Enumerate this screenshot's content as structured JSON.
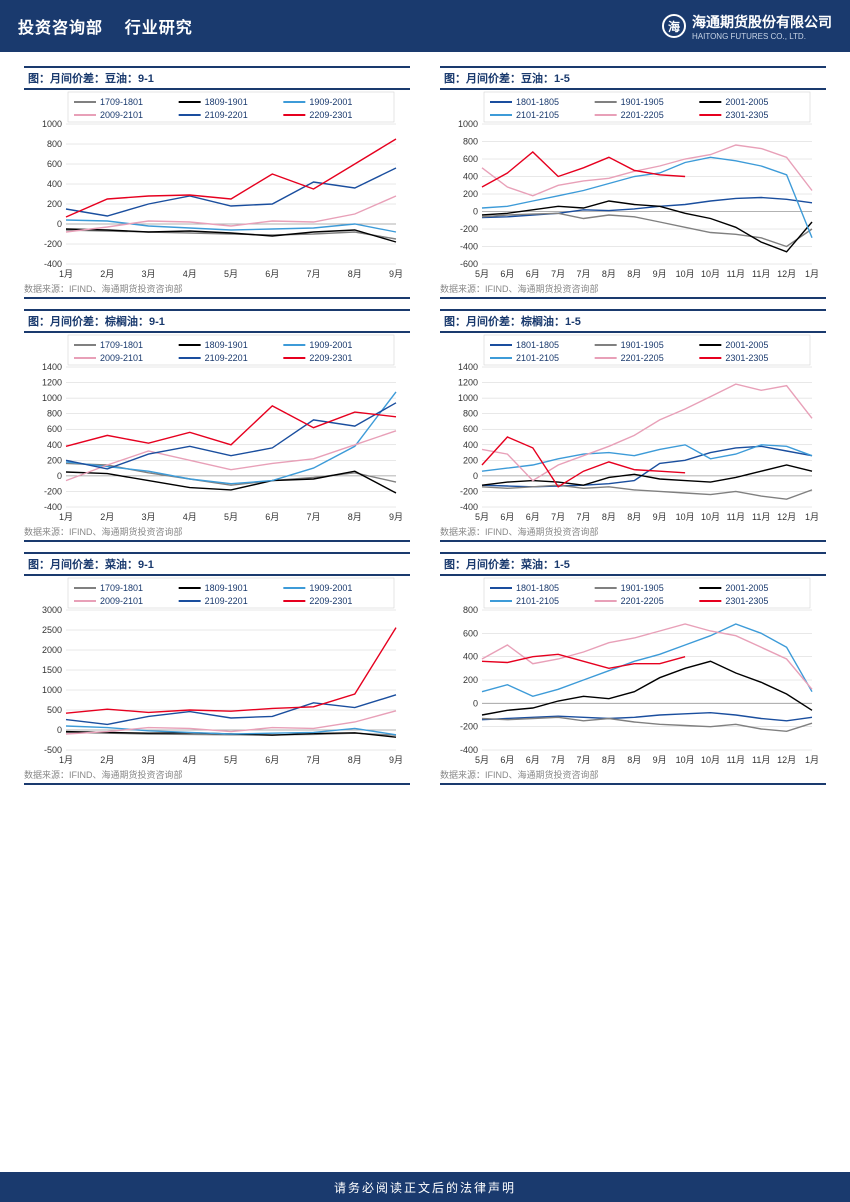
{
  "header": {
    "dept": "投资咨询部",
    "section": "行业研究",
    "company_cn": "海通期货股份有限公司",
    "company_en": "HAITONG FUTURES CO., LTD."
  },
  "footer": "请务必阅读正文后的法律声明",
  "source_label": "数据来源：IFIND、海通期货投资咨询部",
  "chart_style": {
    "background": "#ffffff",
    "grid_color": "#d0d0d0",
    "axis_color": "#333333",
    "title_bar_color": "#1a3a6e",
    "axis_fontsize": 9,
    "legend_fontsize": 9,
    "line_width": 1.4
  },
  "charts": [
    {
      "title": "图：月间价差：豆油：9-1",
      "ylim": [
        -400,
        1000
      ],
      "ytick_step": 200,
      "xlabels": [
        "1月",
        "2月",
        "3月",
        "4月",
        "5月",
        "6月",
        "7月",
        "8月",
        "9月"
      ],
      "series": [
        {
          "name": "1709-1801",
          "color": "#808080",
          "data": [
            -60,
            -70,
            -80,
            -90,
            -100,
            -110,
            -100,
            -80,
            -150
          ]
        },
        {
          "name": "1809-1901",
          "color": "#000000",
          "data": [
            -50,
            -60,
            -80,
            -70,
            -90,
            -120,
            -80,
            -60,
            -180
          ]
        },
        {
          "name": "1909-2001",
          "color": "#3d9bd8",
          "data": [
            40,
            30,
            -20,
            -40,
            -60,
            -50,
            -40,
            0,
            -80
          ]
        },
        {
          "name": "2009-2101",
          "color": "#e8a0b8",
          "data": [
            -80,
            -30,
            30,
            20,
            -20,
            30,
            20,
            100,
            280
          ]
        },
        {
          "name": "2109-2201",
          "color": "#1a4e9e",
          "data": [
            150,
            80,
            200,
            280,
            180,
            200,
            420,
            360,
            560
          ]
        },
        {
          "name": "2209-2301",
          "color": "#e6001f",
          "data": [
            70,
            250,
            280,
            290,
            250,
            500,
            350,
            600,
            850
          ]
        }
      ]
    },
    {
      "title": "图：月间价差：豆油：1-5",
      "ylim": [
        -600,
        1000
      ],
      "ytick_step": 200,
      "xlabels": [
        "5月",
        "6月",
        "6月",
        "7月",
        "7月",
        "8月",
        "8月",
        "9月",
        "10月",
        "10月",
        "11月",
        "11月",
        "12月",
        "1月"
      ],
      "series": [
        {
          "name": "1801-1805",
          "color": "#1a4e9e",
          "data": [
            -70,
            -60,
            -40,
            -20,
            20,
            10,
            30,
            60,
            80,
            120,
            150,
            160,
            140,
            100
          ]
        },
        {
          "name": "1901-1905",
          "color": "#808080",
          "data": [
            -60,
            -40,
            -30,
            -20,
            -80,
            -40,
            -60,
            -120,
            -180,
            -240,
            -260,
            -300,
            -400,
            -200
          ]
        },
        {
          "name": "2001-2005",
          "color": "#000000",
          "data": [
            -40,
            -20,
            20,
            60,
            40,
            120,
            80,
            60,
            -20,
            -80,
            -180,
            -350,
            -460,
            -120
          ]
        },
        {
          "name": "2101-2105",
          "color": "#3d9bd8",
          "data": [
            40,
            60,
            120,
            180,
            240,
            320,
            400,
            440,
            560,
            620,
            580,
            520,
            420,
            -300
          ]
        },
        {
          "name": "2201-2205",
          "color": "#e8a0b8",
          "data": [
            500,
            280,
            180,
            300,
            350,
            380,
            460,
            520,
            600,
            650,
            760,
            720,
            620,
            240
          ]
        },
        {
          "name": "2301-2305",
          "color": "#e6001f",
          "data": [
            280,
            440,
            680,
            400,
            500,
            620,
            470,
            420,
            400,
            null,
            null,
            null,
            null,
            null
          ]
        }
      ]
    },
    {
      "title": "图：月间价差：棕榈油：9-1",
      "ylim": [
        -400,
        1400
      ],
      "ytick_step": 200,
      "xlabels": [
        "1月",
        "2月",
        "3月",
        "4月",
        "5月",
        "6月",
        "7月",
        "8月",
        "9月"
      ],
      "series": [
        {
          "name": "1709-1801",
          "color": "#808080",
          "data": [
            160,
            140,
            40,
            -40,
            -120,
            -60,
            -20,
            40,
            -80
          ]
        },
        {
          "name": "1809-1901",
          "color": "#000000",
          "data": [
            50,
            30,
            -60,
            -150,
            -180,
            -60,
            -40,
            60,
            -220
          ]
        },
        {
          "name": "1909-2001",
          "color": "#3d9bd8",
          "data": [
            180,
            120,
            60,
            -40,
            -100,
            -60,
            100,
            380,
            1080
          ]
        },
        {
          "name": "2009-2101",
          "color": "#e8a0b8",
          "data": [
            -60,
            140,
            320,
            200,
            80,
            160,
            220,
            400,
            580
          ]
        },
        {
          "name": "2109-2201",
          "color": "#1a4e9e",
          "data": [
            200,
            90,
            280,
            380,
            260,
            360,
            720,
            640,
            940
          ]
        },
        {
          "name": "2209-2301",
          "color": "#e6001f",
          "data": [
            380,
            520,
            420,
            560,
            400,
            900,
            620,
            820,
            760
          ]
        }
      ]
    },
    {
      "title": "图：月间价差：棕榈油：1-5",
      "ylim": [
        -400,
        1400
      ],
      "ytick_step": 200,
      "xlabels": [
        "5月",
        "6月",
        "6月",
        "7月",
        "7月",
        "8月",
        "8月",
        "9月",
        "10月",
        "10月",
        "11月",
        "11月",
        "12月",
        "1月"
      ],
      "series": [
        {
          "name": "1801-1805",
          "color": "#1a4e9e",
          "data": [
            -120,
            -130,
            -140,
            -130,
            -120,
            -100,
            -60,
            160,
            200,
            300,
            360,
            380,
            320,
            260
          ]
        },
        {
          "name": "1901-1905",
          "color": "#808080",
          "data": [
            -140,
            -160,
            -140,
            -120,
            -160,
            -140,
            -180,
            -200,
            -220,
            -240,
            -200,
            -260,
            -300,
            -180
          ]
        },
        {
          "name": "2001-2005",
          "color": "#000000",
          "data": [
            -120,
            -80,
            -60,
            -80,
            -120,
            -20,
            20,
            -40,
            -60,
            -80,
            -20,
            60,
            140,
            60
          ]
        },
        {
          "name": "2101-2105",
          "color": "#3d9bd8",
          "data": [
            60,
            100,
            140,
            220,
            280,
            300,
            260,
            340,
            400,
            220,
            280,
            400,
            380,
            260
          ]
        },
        {
          "name": "2201-2205",
          "color": "#e8a0b8",
          "data": [
            340,
            280,
            -60,
            140,
            260,
            380,
            520,
            720,
            860,
            1020,
            1180,
            1100,
            1160,
            740
          ]
        },
        {
          "name": "2301-2305",
          "color": "#e6001f",
          "data": [
            140,
            500,
            360,
            -140,
            60,
            180,
            80,
            60,
            40,
            null,
            null,
            null,
            null,
            null
          ]
        }
      ]
    },
    {
      "title": "图：月间价差：菜油：9-1",
      "ylim": [
        -500,
        3000
      ],
      "ytick_step": 500,
      "xlabels": [
        "1月",
        "2月",
        "3月",
        "4月",
        "5月",
        "6月",
        "7月",
        "8月",
        "9月"
      ],
      "series": [
        {
          "name": "1709-1801",
          "color": "#808080",
          "data": [
            -60,
            -80,
            -100,
            -110,
            -120,
            -120,
            -110,
            -80,
            -130
          ]
        },
        {
          "name": "1809-1901",
          "color": "#000000",
          "data": [
            -40,
            -60,
            -80,
            -70,
            -100,
            -130,
            -90,
            -70,
            -180
          ]
        },
        {
          "name": "1909-2001",
          "color": "#3d9bd8",
          "data": [
            100,
            60,
            -20,
            -60,
            -100,
            -80,
            -60,
            40,
            -120
          ]
        },
        {
          "name": "2009-2101",
          "color": "#e8a0b8",
          "data": [
            -100,
            -40,
            60,
            40,
            -40,
            60,
            40,
            200,
            480
          ]
        },
        {
          "name": "2109-2201",
          "color": "#1a4e9e",
          "data": [
            260,
            140,
            340,
            460,
            300,
            340,
            680,
            560,
            880
          ]
        },
        {
          "name": "2209-2301",
          "color": "#e6001f",
          "data": [
            420,
            520,
            440,
            500,
            470,
            540,
            580,
            900,
            2560
          ]
        }
      ]
    },
    {
      "title": "图：月间价差：菜油：1-5",
      "ylim": [
        -400,
        800
      ],
      "ytick_step": 200,
      "xlabels": [
        "5月",
        "6月",
        "6月",
        "7月",
        "7月",
        "8月",
        "8月",
        "9月",
        "10月",
        "10月",
        "11月",
        "11月",
        "12月",
        "1月"
      ],
      "series": [
        {
          "name": "1801-1805",
          "color": "#1a4e9e",
          "data": [
            -140,
            -130,
            -120,
            -110,
            -120,
            -130,
            -120,
            -100,
            -90,
            -80,
            -100,
            -130,
            -150,
            -120
          ]
        },
        {
          "name": "1901-1905",
          "color": "#808080",
          "data": [
            -130,
            -140,
            -130,
            -120,
            -150,
            -130,
            -160,
            -180,
            -190,
            -200,
            -180,
            -220,
            -240,
            -170
          ]
        },
        {
          "name": "2001-2005",
          "color": "#000000",
          "data": [
            -100,
            -60,
            -40,
            20,
            60,
            40,
            100,
            220,
            300,
            360,
            260,
            180,
            80,
            -60
          ]
        },
        {
          "name": "2101-2105",
          "color": "#3d9bd8",
          "data": [
            100,
            160,
            60,
            120,
            200,
            280,
            360,
            420,
            500,
            580,
            680,
            600,
            480,
            100
          ]
        },
        {
          "name": "2201-2205",
          "color": "#e8a0b8",
          "data": [
            380,
            500,
            340,
            380,
            440,
            520,
            560,
            620,
            680,
            620,
            580,
            480,
            380,
            120
          ]
        },
        {
          "name": "2301-2305",
          "color": "#e6001f",
          "data": [
            360,
            350,
            400,
            420,
            360,
            300,
            340,
            340,
            400,
            null,
            null,
            null,
            null,
            null
          ]
        }
      ]
    }
  ]
}
